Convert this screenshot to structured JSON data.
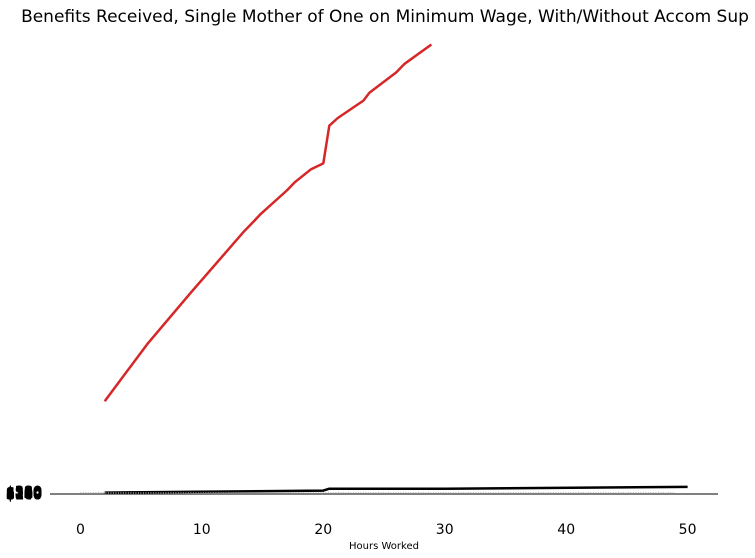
{
  "chart_data": {
    "type": "line",
    "title": "Benefits Received, Single Mother of One on Minimum Wage, With/Without Accom Sup",
    "xlabel": "Hours Worked",
    "ylabel": "",
    "xlim": [
      -2.5,
      52.5
    ],
    "ylim": [
      0,
      480
    ],
    "x_ticks": [
      0,
      10,
      20,
      30,
      40,
      50
    ],
    "y_tick_labels": [
      "$380",
      "$360",
      "$340",
      "$320",
      "$300",
      "$280",
      "$260",
      "$240",
      "$220",
      "$200",
      "$180",
      "$160",
      "$140"
    ],
    "grid": false,
    "legend": "none",
    "series": [
      {
        "color": "#d62728",
        "x": [
          2,
          5.5,
          9,
          13.5,
          14.2,
          14.8,
          17,
          17.7,
          19,
          20,
          20.5,
          21.2,
          23.3,
          23.8,
          26,
          26.7,
          28.9
        ],
        "y": [
          96,
          155,
          207,
          272,
          281,
          289,
          314,
          323,
          336,
          342,
          381,
          389,
          407,
          415,
          436,
          445,
          465
        ]
      },
      {
        "color": "#000000",
        "x": [
          2,
          20,
          20.5,
          30,
          50
        ],
        "y": [
          1.5,
          3.5,
          5.5,
          5.5,
          7.3
        ]
      },
      {
        "color": "#aaaaaa",
        "style": "dotted",
        "x": [
          0,
          49
        ],
        "y": [
          1,
          1
        ]
      }
    ]
  }
}
